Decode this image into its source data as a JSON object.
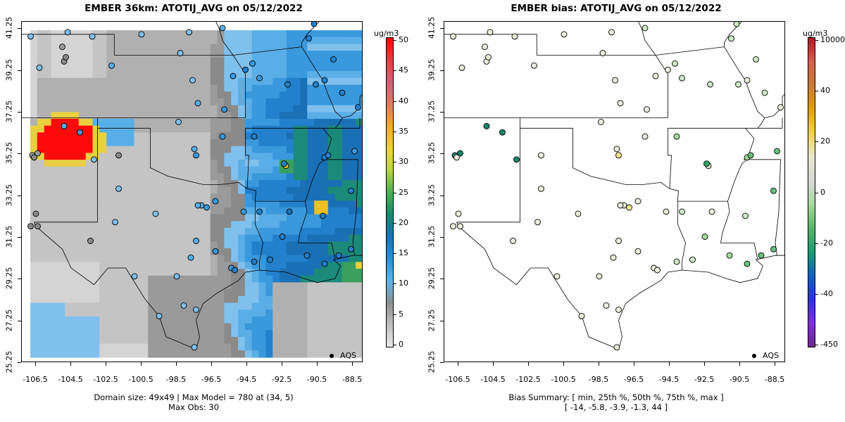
{
  "left": {
    "title": "EMBER 36km: ATOTIJ_AVG on 05/12/2022",
    "footer_line1": "Domain size: 49x49 | Max Model = 780 at (34, 5)",
    "footer_line2": "Max Obs: 30",
    "colorbar": {
      "unit": "ug/m3",
      "ticks": [
        "0",
        "5",
        "10",
        "15",
        "20",
        "25",
        "30",
        "35",
        "40",
        "45",
        "50"
      ],
      "colors": [
        "#e8e8e8",
        "#bdbdbd",
        "#8f8f8f",
        "#5ab4e8",
        "#2a8fd6",
        "#1772b8",
        "#1a8a6a",
        "#4caf50",
        "#b8d44a",
        "#f0d040",
        "#f0a830",
        "#e07a5f",
        "#d0607a",
        "#e04040",
        "#ff0000"
      ]
    },
    "legend_label": "AQS"
  },
  "right": {
    "title": "EMBER bias: ATOTIJ_AVG on 05/12/2022",
    "footer_line1": "Bias Summary: [ min, 25th %, 50th %, 75th %, max ]",
    "footer_line2": "[ -14,  -5.8,  -3.9,  -1.3,  44 ]",
    "colorbar": {
      "unit": "ug/m3",
      "ticks": [
        "10000",
        "40",
        "20",
        "0",
        "-20",
        "-40",
        "-450"
      ],
      "colors": [
        "#b2182b",
        "#d6604d",
        "#c77a3a",
        "#e0a000",
        "#f2d34a",
        "#e6e6cf",
        "#d8d8d8",
        "#a8d8a0",
        "#5ab46a",
        "#1a9e70",
        "#1060c0",
        "#3030e0",
        "#8030e0",
        "#6a2a8a"
      ]
    },
    "legend_label": "AQS"
  },
  "axes": {
    "yticks": [
      "41.25",
      "39.25",
      "37.25",
      "35.25",
      "33.25",
      "31.25",
      "29.25",
      "27.25",
      "25.25"
    ],
    "xticks": [
      "-106.5",
      "-104.5",
      "-102.5",
      "-100.5",
      "-98.5",
      "-96.5",
      "-94.5",
      "-92.5",
      "-90.5",
      "-88.5"
    ],
    "xlim": [
      -107.3,
      -87.9
    ],
    "ylim": [
      25.25,
      41.6
    ]
  },
  "chart_data": {
    "type": "heatmap",
    "title": "EMBER 36km: ATOTIJ_AVG on 05/12/2022",
    "xlabel": "",
    "ylabel": "",
    "units": "ug/m3",
    "domain_size": "49x49",
    "max_model": 780,
    "max_model_cell": [
      34,
      5
    ],
    "max_obs": 30,
    "bias_summary": {
      "min": -14,
      "p25": -5.8,
      "p50": -3.9,
      "p75": -1.3,
      "max": 44
    },
    "observations": [
      {
        "lon": -106.8,
        "lat": 40.9,
        "value": 9
      },
      {
        "lon": -104.9,
        "lat": 39.7,
        "value": 8
      },
      {
        "lon": -104.8,
        "lat": 39.9,
        "value": 7
      },
      {
        "lon": -105.0,
        "lat": 40.4,
        "value": 6
      },
      {
        "lon": -104.7,
        "lat": 41.1,
        "value": 9
      },
      {
        "lon": -106.3,
        "lat": 39.4,
        "value": 9
      },
      {
        "lon": -103.3,
        "lat": 40.9,
        "value": 10
      },
      {
        "lon": -102.2,
        "lat": 39.5,
        "value": 11
      },
      {
        "lon": -100.5,
        "lat": 41.0,
        "value": 9
      },
      {
        "lon": -98.3,
        "lat": 40.1,
        "value": 10
      },
      {
        "lon": -97.8,
        "lat": 41.1,
        "value": 9
      },
      {
        "lon": -95.9,
        "lat": 41.3,
        "value": 11
      },
      {
        "lon": -95.3,
        "lat": 39.0,
        "value": 13
      },
      {
        "lon": -94.6,
        "lat": 39.3,
        "value": 14
      },
      {
        "lon": -94.2,
        "lat": 39.6,
        "value": 12
      },
      {
        "lon": -93.8,
        "lat": 38.9,
        "value": 13
      },
      {
        "lon": -92.2,
        "lat": 38.6,
        "value": 14
      },
      {
        "lon": -90.6,
        "lat": 38.6,
        "value": 14
      },
      {
        "lon": -90.1,
        "lat": 38.8,
        "value": 15
      },
      {
        "lon": -89.6,
        "lat": 39.8,
        "value": 14
      },
      {
        "lon": -90.7,
        "lat": 41.5,
        "value": 15
      },
      {
        "lon": -88.6,
        "lat": 41.6,
        "value": 13
      },
      {
        "lon": -91.0,
        "lat": 40.8,
        "value": 14
      },
      {
        "lon": -89.1,
        "lat": 38.2,
        "value": 14
      },
      {
        "lon": -88.2,
        "lat": 37.5,
        "value": 14
      },
      {
        "lon": -97.3,
        "lat": 37.7,
        "value": 11
      },
      {
        "lon": -97.6,
        "lat": 38.8,
        "value": 10
      },
      {
        "lon": -95.8,
        "lat": 37.4,
        "value": 12
      },
      {
        "lon": -98.4,
        "lat": 36.8,
        "value": 10
      },
      {
        "lon": -97.5,
        "lat": 35.5,
        "value": 11
      },
      {
        "lon": -97.4,
        "lat": 35.2,
        "value": 12
      },
      {
        "lon": -95.9,
        "lat": 36.1,
        "value": 13
      },
      {
        "lon": -94.1,
        "lat": 36.1,
        "value": 14
      },
      {
        "lon": -92.3,
        "lat": 34.7,
        "value": 30
      },
      {
        "lon": -92.4,
        "lat": 34.8,
        "value": 15
      },
      {
        "lon": -90.1,
        "lat": 35.1,
        "value": 15
      },
      {
        "lon": -89.9,
        "lat": 35.2,
        "value": 14
      },
      {
        "lon": -88.4,
        "lat": 35.4,
        "value": 13
      },
      {
        "lon": -101.8,
        "lat": 35.2,
        "value": 8
      },
      {
        "lon": -106.7,
        "lat": 35.2,
        "value": 6
      },
      {
        "lon": -106.6,
        "lat": 35.1,
        "value": 7
      },
      {
        "lon": -106.4,
        "lat": 35.3,
        "value": 6
      },
      {
        "lon": -104.9,
        "lat": 36.6,
        "value": 11
      },
      {
        "lon": -104.0,
        "lat": 36.3,
        "value": 12
      },
      {
        "lon": -103.2,
        "lat": 35.0,
        "value": 10
      },
      {
        "lon": -106.5,
        "lat": 32.4,
        "value": 8
      },
      {
        "lon": -106.8,
        "lat": 31.8,
        "value": 7
      },
      {
        "lon": -106.4,
        "lat": 31.8,
        "value": 8
      },
      {
        "lon": -102.0,
        "lat": 32.0,
        "value": 9
      },
      {
        "lon": -101.8,
        "lat": 33.6,
        "value": 9
      },
      {
        "lon": -99.7,
        "lat": 32.4,
        "value": 10
      },
      {
        "lon": -97.1,
        "lat": 32.8,
        "value": 11
      },
      {
        "lon": -96.8,
        "lat": 32.7,
        "value": 12
      },
      {
        "lon": -97.3,
        "lat": 32.8,
        "value": 11
      },
      {
        "lon": -96.3,
        "lat": 33.0,
        "value": 12
      },
      {
        "lon": -94.7,
        "lat": 32.5,
        "value": 13
      },
      {
        "lon": -93.8,
        "lat": 32.5,
        "value": 14
      },
      {
        "lon": -92.1,
        "lat": 32.5,
        "value": 16
      },
      {
        "lon": -90.2,
        "lat": 32.3,
        "value": 15
      },
      {
        "lon": -88.6,
        "lat": 33.5,
        "value": 14
      },
      {
        "lon": -97.7,
        "lat": 30.3,
        "value": 11
      },
      {
        "lon": -98.5,
        "lat": 29.4,
        "value": 10
      },
      {
        "lon": -97.4,
        "lat": 31.1,
        "value": 11
      },
      {
        "lon": -96.3,
        "lat": 30.6,
        "value": 12
      },
      {
        "lon": -95.4,
        "lat": 29.8,
        "value": 13
      },
      {
        "lon": -95.2,
        "lat": 29.7,
        "value": 14
      },
      {
        "lon": -94.1,
        "lat": 30.1,
        "value": 14
      },
      {
        "lon": -93.2,
        "lat": 30.2,
        "value": 14
      },
      {
        "lon": -91.1,
        "lat": 30.4,
        "value": 15
      },
      {
        "lon": -90.1,
        "lat": 30.0,
        "value": 14
      },
      {
        "lon": -89.3,
        "lat": 30.4,
        "value": 15
      },
      {
        "lon": -88.6,
        "lat": 30.7,
        "value": 15
      },
      {
        "lon": -92.5,
        "lat": 31.3,
        "value": 14
      },
      {
        "lon": -98.1,
        "lat": 28.0,
        "value": 9
      },
      {
        "lon": -97.4,
        "lat": 27.8,
        "value": 10
      },
      {
        "lon": -97.5,
        "lat": 26.0,
        "value": 9
      },
      {
        "lon": -99.5,
        "lat": 27.5,
        "value": 9
      },
      {
        "lon": -100.9,
        "lat": 29.4,
        "value": 9
      },
      {
        "lon": -103.4,
        "lat": 31.1,
        "value": 8
      }
    ]
  }
}
